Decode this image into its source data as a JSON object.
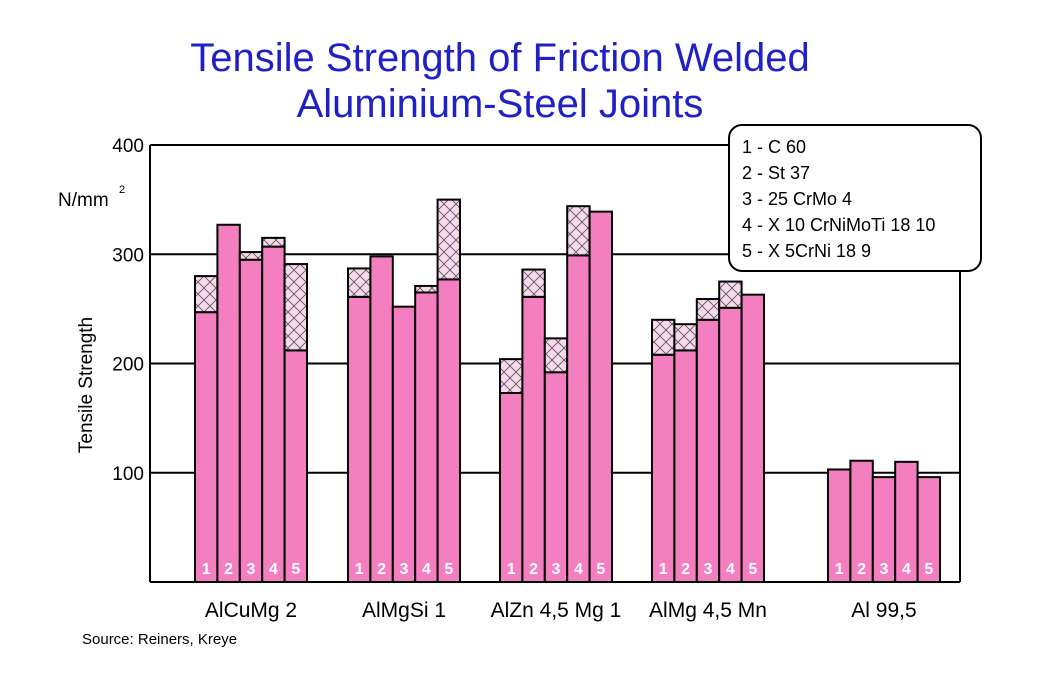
{
  "title_line1": "Tensile Strength of Friction Welded",
  "title_line2": "Aluminium-Steel Joints",
  "source": "Source: Reiners, Kreye",
  "chart_data": {
    "type": "bar",
    "title": "Tensile Strength of Friction Welded Aluminium-Steel Joints",
    "ylabel": "Tensile Strength",
    "yunit": "N/mm",
    "yunit_sup": "2",
    "ylim": [
      0,
      400
    ],
    "yticks": [
      100,
      200,
      300,
      400
    ],
    "grid": true,
    "legend_placement": "top-right",
    "legend": [
      "1 - C 60",
      "2 - St 37",
      "3 - 25 CrMo 4",
      "4 - X 10 CrNiMoTi 18 10",
      "5 - X 5CrNi 18 9"
    ],
    "bar_labels": [
      "1",
      "2",
      "3",
      "4",
      "5"
    ],
    "colors": {
      "bar": "#f47fc0",
      "range": "#f8d8ec",
      "grid": "#000000"
    },
    "groups": [
      {
        "name": "AlCuMg 2",
        "min": [
          247,
          327,
          295,
          307,
          212
        ],
        "max": [
          280,
          327,
          302,
          315,
          291
        ]
      },
      {
        "name": "AlMgSi 1",
        "min": [
          261,
          298,
          252,
          265,
          277
        ],
        "max": [
          287,
          298,
          252,
          271,
          350
        ]
      },
      {
        "name": "AlZn 4,5 Mg 1",
        "min": [
          173,
          261,
          192,
          299,
          339
        ],
        "max": [
          204,
          286,
          223,
          344,
          339
        ]
      },
      {
        "name": "AlMg 4,5 Mn",
        "min": [
          208,
          212,
          240,
          251,
          263
        ],
        "max": [
          240,
          236,
          259,
          275,
          263
        ]
      },
      {
        "name": "Al 99,5",
        "min": [
          103,
          111,
          96,
          110,
          96
        ],
        "max": [
          103,
          111,
          96,
          110,
          96
        ]
      }
    ]
  }
}
